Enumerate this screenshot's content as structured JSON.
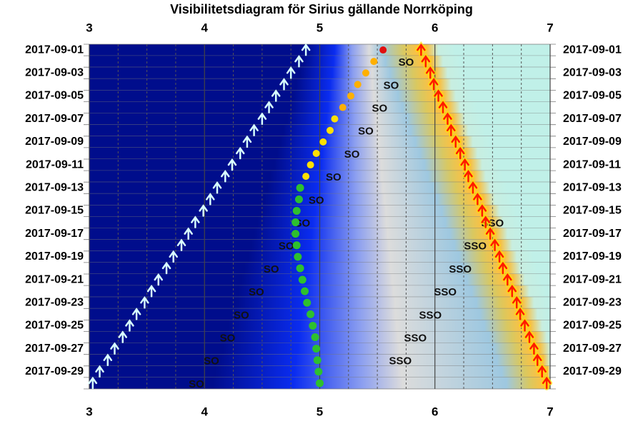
{
  "chart_data": {
    "type": "visibility",
    "title": "Visibilitetsdiagram för Sirius gällande Norrköping",
    "categories": [
      "2017-09-01",
      null,
      "2017-09-03",
      null,
      "2017-09-05",
      null,
      "2017-09-07",
      null,
      "2017-09-09",
      null,
      "2017-09-11",
      null,
      "2017-09-13",
      null,
      "2017-09-15",
      null,
      "2017-09-17",
      null,
      "2017-09-19",
      null,
      "2017-09-21",
      null,
      "2017-09-23",
      null,
      "2017-09-25",
      null,
      "2017-09-27",
      null,
      "2017-09-29",
      null
    ],
    "xlim": [
      3,
      7
    ],
    "xticks": [
      3,
      4,
      5,
      6,
      7
    ],
    "minor_xticks": [
      3.25,
      3.5,
      3.75,
      4.25,
      4.5,
      4.75,
      5.25,
      5.5,
      5.75,
      6.25,
      6.5,
      6.75
    ],
    "series": [
      {
        "role": "star-rise",
        "color": "#d8ffff",
        "values": [
          4.88,
          4.82,
          4.75,
          4.69,
          4.62,
          4.56,
          4.5,
          4.43,
          4.37,
          4.31,
          4.24,
          4.18,
          4.11,
          4.05,
          3.99,
          3.92,
          3.86,
          3.8,
          3.73,
          3.67,
          3.6,
          3.54,
          3.48,
          3.41,
          3.35,
          3.29,
          3.22,
          3.16,
          3.09,
          3.03
        ]
      },
      {
        "role": "sun-rise",
        "color": "#ff1a00",
        "values": [
          5.88,
          5.92,
          5.96,
          5.99,
          6.03,
          6.07,
          6.11,
          6.14,
          6.18,
          6.22,
          6.26,
          6.29,
          6.33,
          6.37,
          6.41,
          6.44,
          6.48,
          6.52,
          6.56,
          6.59,
          6.63,
          6.67,
          6.71,
          6.74,
          6.78,
          6.82,
          6.86,
          6.89,
          6.93,
          6.97
        ]
      },
      {
        "role": "visibility",
        "values": [
          5.55,
          5.47,
          5.4,
          5.33,
          5.27,
          5.2,
          5.13,
          5.09,
          5.03,
          4.97,
          4.92,
          4.88,
          4.83,
          4.82,
          4.8,
          4.79,
          4.79,
          4.8,
          4.81,
          4.83,
          4.85,
          4.87,
          4.89,
          4.92,
          4.94,
          4.96,
          4.97,
          4.98,
          4.99,
          5.0
        ],
        "colors": [
          "#e01010",
          "#ffb000",
          "#ffb000",
          "#ffb000",
          "#ffb000",
          "#ffb000",
          "#ffe000",
          "#ffe000",
          "#ffe000",
          "#ffe000",
          "#ffe000",
          "#ffe000",
          "#2ec02e",
          "#2ec02e",
          "#2ec02e",
          "#2ec02e",
          "#2ec02e",
          "#2ec02e",
          "#2ec02e",
          "#2ec02e",
          "#2ec02e",
          "#2ec02e",
          "#2ec02e",
          "#2ec02e",
          "#2ec02e",
          "#2ec02e",
          "#2ec02e",
          "#2ec02e",
          "#2ec02e",
          "#2ec02e"
        ]
      }
    ],
    "direction_labels": [
      {
        "label": "SO",
        "values": [
          null,
          5.75,
          null,
          5.62,
          null,
          5.52,
          null,
          5.4,
          null,
          5.28,
          null,
          5.12,
          null,
          4.97,
          null,
          4.85,
          null,
          4.71,
          null,
          4.58,
          null,
          4.45,
          null,
          4.32,
          null,
          4.2,
          null,
          4.06,
          null,
          3.93
        ]
      },
      {
        "label": "SSO",
        "values": [
          null,
          null,
          null,
          null,
          null,
          null,
          null,
          null,
          null,
          null,
          null,
          null,
          null,
          null,
          null,
          6.5,
          null,
          6.35,
          null,
          6.22,
          null,
          6.09,
          null,
          5.96,
          null,
          5.83,
          null,
          5.7,
          null,
          null
        ]
      }
    ]
  }
}
